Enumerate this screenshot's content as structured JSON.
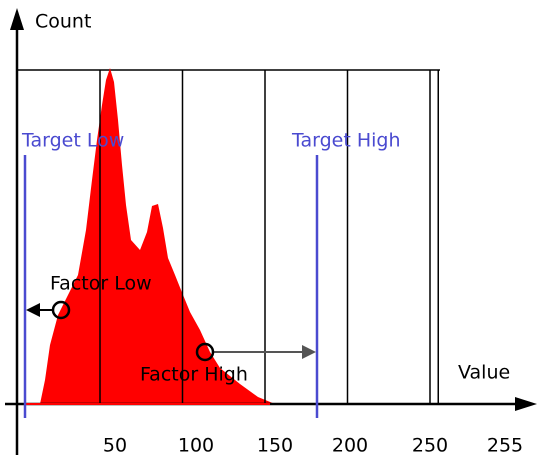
{
  "y_axis_label": "Count",
  "x_axis_label": "Value",
  "x_ticks": [
    50,
    100,
    150,
    200,
    250,
    255
  ],
  "target_low": {
    "label": "Target Low"
  },
  "target_high": {
    "label": "Target High"
  },
  "factor_low": {
    "label": "Factor Low"
  },
  "factor_high": {
    "label": "Factor High"
  }
}
